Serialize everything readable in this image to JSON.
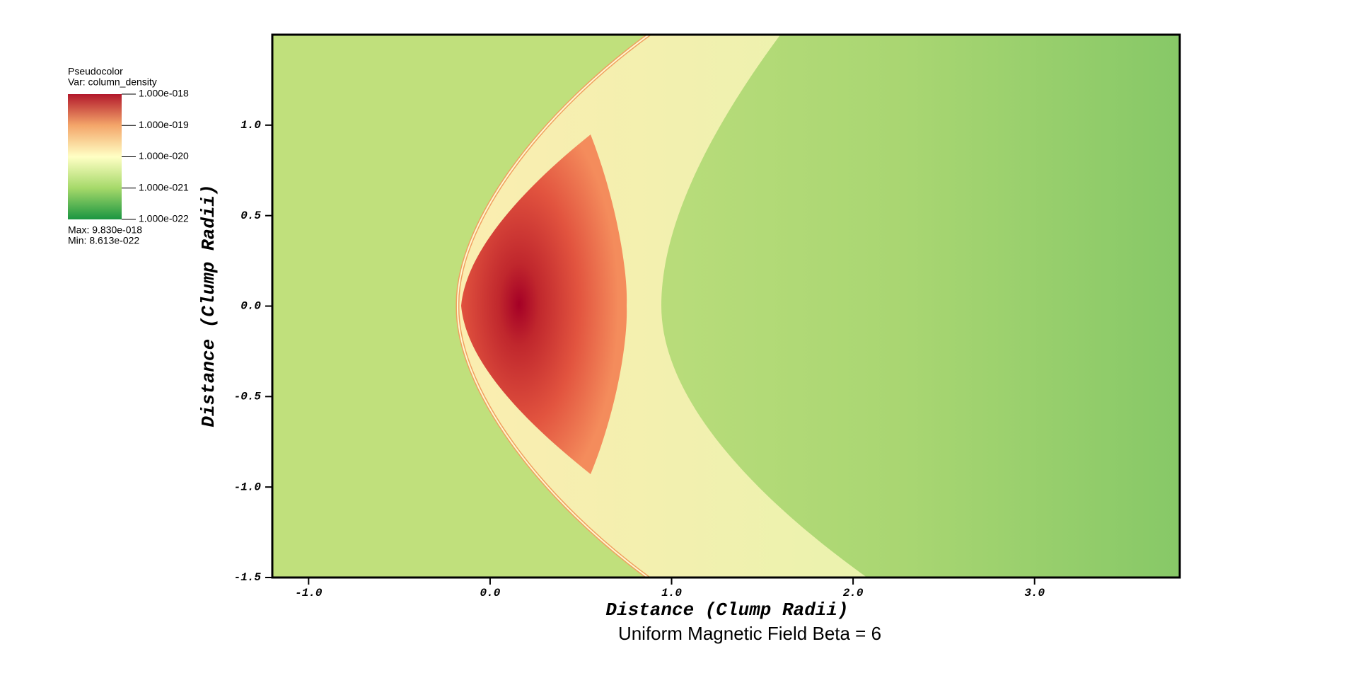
{
  "chart_data": {
    "type": "heatmap",
    "title": "Uniform Magnetic Field Beta = 6",
    "x_label": "Distance (Clump Radii)",
    "y_label": "Distance (Clump Radii)",
    "xlim": [
      -1.2,
      3.8
    ],
    "ylim": [
      -1.5,
      1.5
    ],
    "xticks": [
      {
        "value": -1,
        "label": "-1.0"
      },
      {
        "value": 0,
        "label": "0.0"
      },
      {
        "value": 1,
        "label": "1.0"
      },
      {
        "value": 2,
        "label": "2.0"
      },
      {
        "value": 3,
        "label": "3.0"
      }
    ],
    "yticks": [
      {
        "value": -1.5,
        "label": "-1.5"
      },
      {
        "value": -1,
        "label": "-1.0"
      },
      {
        "value": -0.5,
        "label": "-0.5"
      },
      {
        "value": 0,
        "label": "0.0"
      },
      {
        "value": 0.5,
        "label": "0.5"
      },
      {
        "value": 1,
        "label": "1.0"
      }
    ],
    "colorbar": {
      "title": "Pseudocolor",
      "variable": "Var: column_density",
      "log_scale": true,
      "clim": [
        1e-22,
        1e-18
      ],
      "ticks": [
        {
          "value": 1e-18,
          "label": "1.000e-018"
        },
        {
          "value": 1e-19,
          "label": "1.000e-019"
        },
        {
          "value": 1e-20,
          "label": "1.000e-020"
        },
        {
          "value": 1e-21,
          "label": "1.000e-021"
        },
        {
          "value": 1e-22,
          "label": "1.000e-022"
        }
      ],
      "max_text": "Max:  9.830e-018",
      "min_text": "Min:  8.613e-022"
    }
  }
}
